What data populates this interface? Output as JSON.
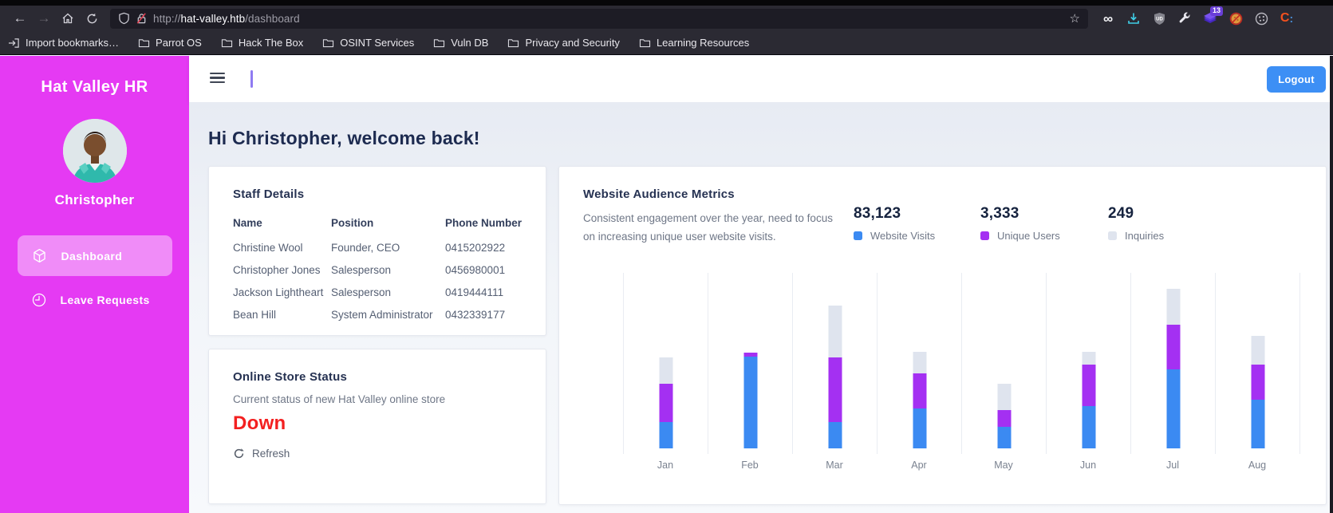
{
  "browser": {
    "url": {
      "scheme": "http://",
      "host": "hat-valley.htb",
      "path": "/dashboard"
    },
    "extensions": {
      "badge_count": "13",
      "ud_label": "UD",
      "c_label": "C",
      "c_dots": ":"
    },
    "bookmarks": [
      {
        "icon": "import",
        "label": "Import bookmarks…"
      },
      {
        "icon": "folder",
        "label": "Parrot OS"
      },
      {
        "icon": "folder",
        "label": "Hack The Box"
      },
      {
        "icon": "folder",
        "label": "OSINT Services"
      },
      {
        "icon": "folder",
        "label": "Vuln DB"
      },
      {
        "icon": "folder",
        "label": "Privacy and Security"
      },
      {
        "icon": "folder",
        "label": "Learning Resources"
      }
    ]
  },
  "sidebar": {
    "app_title": "Hat Valley HR",
    "user_name": "Christopher",
    "items": [
      {
        "label": "Dashboard",
        "icon": "cube",
        "active": true
      },
      {
        "label": "Leave Requests",
        "icon": "clock",
        "active": false
      }
    ]
  },
  "header": {
    "logout_label": "Logout"
  },
  "main": {
    "greeting": "Hi Christopher, welcome back!",
    "staff_card": {
      "title": "Staff Details",
      "columns": [
        "Name",
        "Position",
        "Phone Number"
      ],
      "rows": [
        [
          "Christine Wool",
          "Founder, CEO",
          "0415202922"
        ],
        [
          "Christopher Jones",
          "Salesperson",
          "0456980001"
        ],
        [
          "Jackson Lightheart",
          "Salesperson",
          "0419444111"
        ],
        [
          "Bean Hill",
          "System Administrator",
          "0432339177"
        ]
      ]
    },
    "store_card": {
      "title": "Online Store Status",
      "description": "Current status of new Hat Valley online store",
      "status": "Down",
      "status_color": "#f32020",
      "refresh_label": "Refresh"
    },
    "metrics_card": {
      "title": "Website Audience Metrics",
      "description_line1": "Consistent engagement over the year, need to focus",
      "description_line2": "on increasing unique user website visits.",
      "stats": [
        {
          "value": "83,123",
          "label": "Website Visits",
          "color": "#3b8af2"
        },
        {
          "value": "3,333",
          "label": "Unique Users",
          "color": "#a430f2"
        },
        {
          "value": "249",
          "label": "Inquiries",
          "color": "#dfe4ee"
        }
      ]
    }
  },
  "chart_data": {
    "type": "bar",
    "stacked": true,
    "title": "Website Audience Metrics",
    "categories": [
      "Jan",
      "Feb",
      "Mar",
      "Apr",
      "May",
      "Jun",
      "Jul",
      "Aug"
    ],
    "series": [
      {
        "name": "Website Visits",
        "color": "#3b8af2",
        "values": [
          33,
          115,
          33,
          50,
          27,
          53,
          99,
          61
        ]
      },
      {
        "name": "Unique Users",
        "color": "#a430f2",
        "values": [
          48,
          5,
          81,
          44,
          21,
          52,
          56,
          44
        ]
      },
      {
        "name": "Inquiries",
        "color": "#dfe4ee",
        "values": [
          33,
          0,
          65,
          27,
          33,
          16,
          45,
          36
        ]
      }
    ],
    "note": "no numeric y-axis shown; values are relative bar-segment heights in px",
    "legend_position": "top-right",
    "grid": "vertical-only",
    "xlabel": "",
    "ylabel": ""
  }
}
